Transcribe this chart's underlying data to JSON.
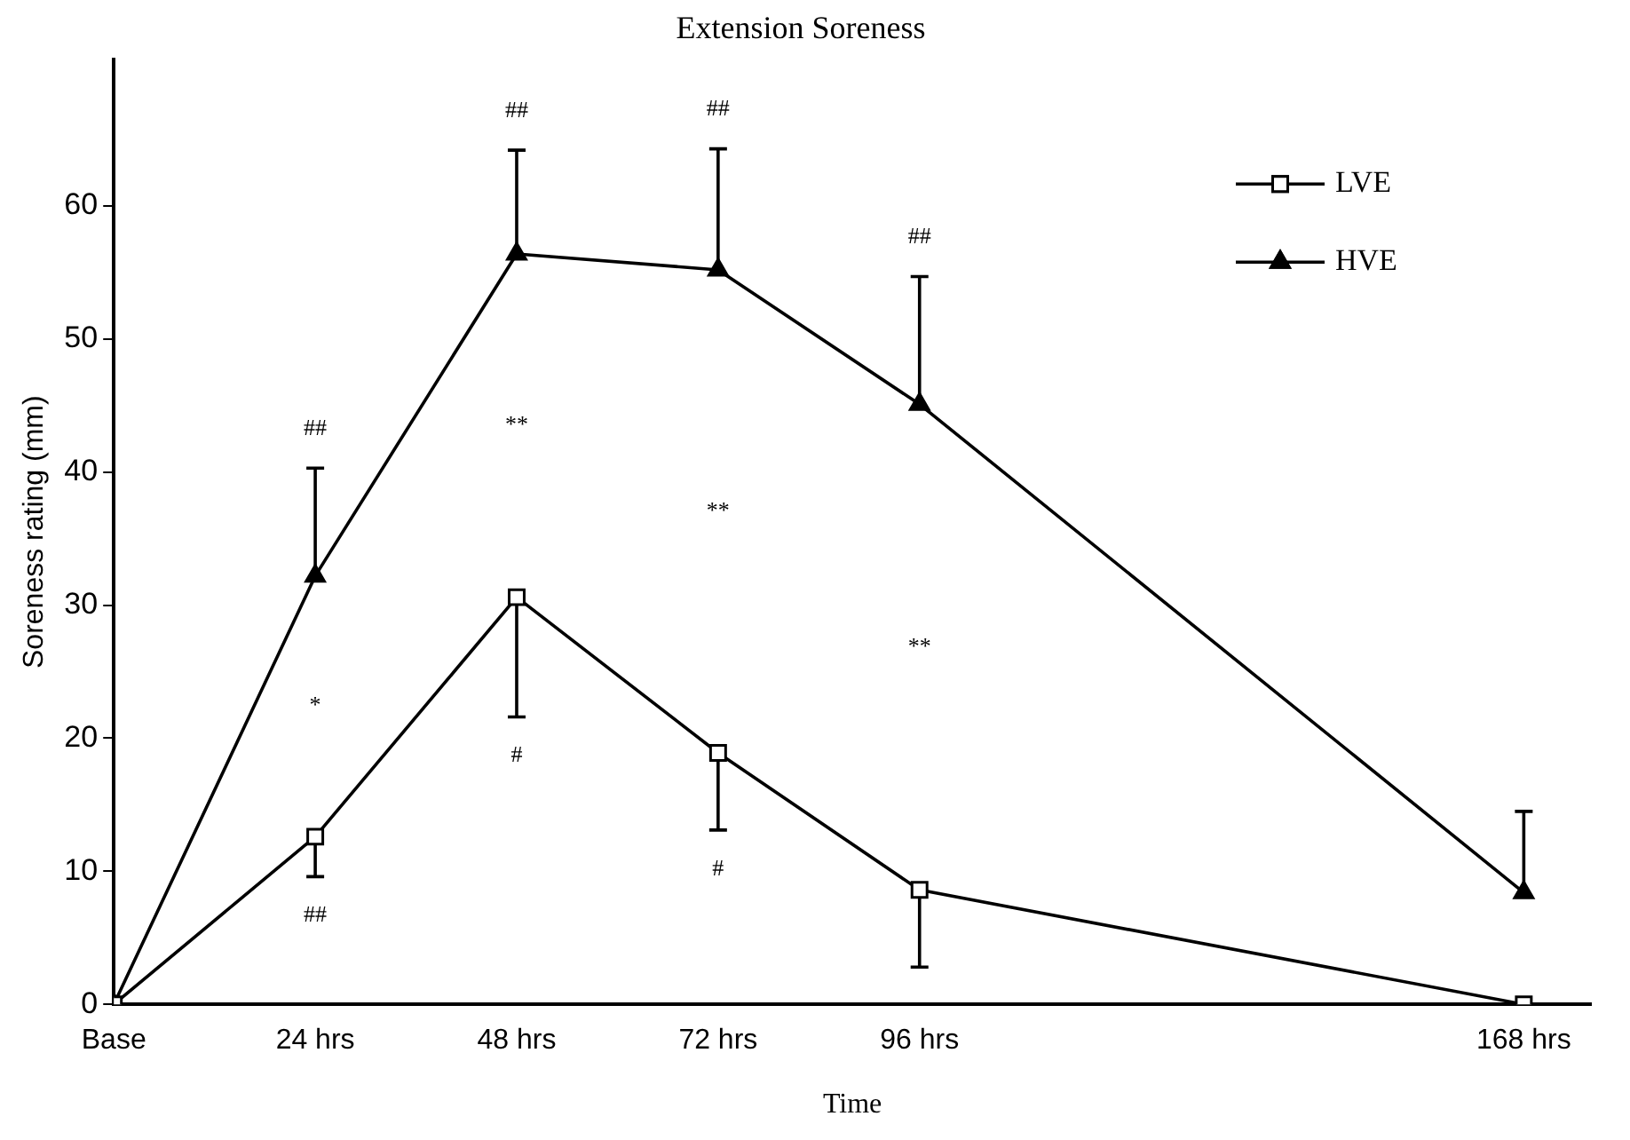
{
  "chart_data": {
    "type": "line",
    "title": "Extension Soreness",
    "xlabel": "Time",
    "ylabel": "Soreness rating (mm)",
    "x": [
      0,
      24,
      48,
      72,
      96,
      168
    ],
    "series": [
      {
        "name": "LVE",
        "color": "#000000",
        "marker": "square",
        "values": [
          0,
          12.6,
          30.6,
          18.9,
          8.6,
          0
        ],
        "errors": [
          null,
          [
            9.6,
            12.6
          ],
          [
            21.6,
            30.6
          ],
          [
            13.1,
            18.9
          ],
          [
            2.8,
            8.6
          ],
          null
        ]
      },
      {
        "name": "HVE",
        "color": "#000000",
        "marker": "triangle",
        "values": [
          0,
          32.2,
          56.4,
          55.2,
          45.1,
          8.4
        ],
        "errors": [
          null,
          [
            32.2,
            40.3
          ],
          [
            56.4,
            64.2
          ],
          [
            55.2,
            64.3
          ],
          [
            45.1,
            54.7
          ],
          [
            8.4,
            14.5
          ]
        ]
      }
    ],
    "xlim": [
      0,
      176
    ],
    "xticks": [
      {
        "value": 0,
        "label": "Base"
      },
      {
        "value": 24,
        "label": "24 hrs"
      },
      {
        "value": 48,
        "label": "48 hrs"
      },
      {
        "value": 72,
        "label": "72 hrs"
      },
      {
        "value": 96,
        "label": "96 hrs"
      },
      {
        "value": 168,
        "label": "168 hrs"
      }
    ],
    "ylim": [
      0,
      71
    ],
    "yticks": [
      0,
      10,
      20,
      30,
      40,
      50,
      60
    ],
    "grid": false,
    "legend": "top right",
    "line_style": "solid",
    "annotations": [
      "##",
      "*",
      "##",
      "##",
      "**",
      "#",
      "##",
      "**",
      "#",
      "##",
      "**"
    ]
  }
}
